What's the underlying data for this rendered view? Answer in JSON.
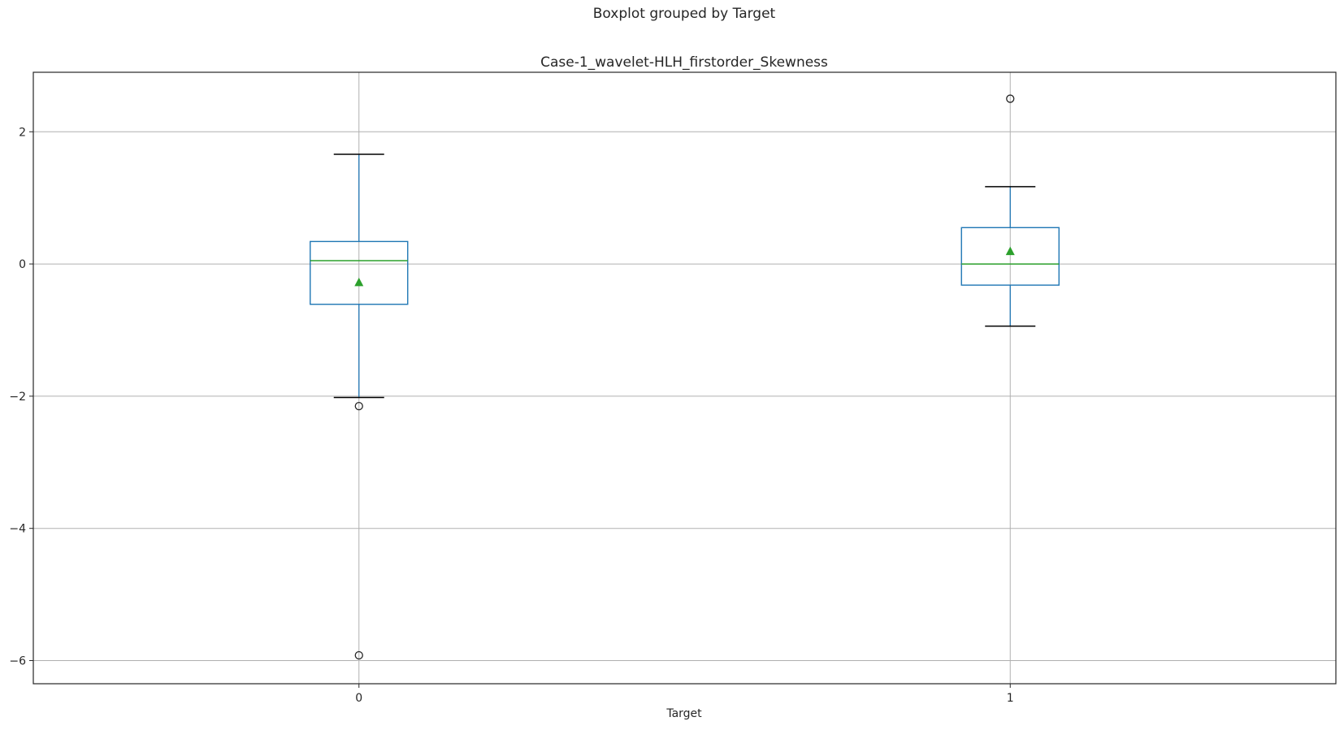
{
  "figure": {
    "suptitle": "Boxplot grouped by Target"
  },
  "chart_data": {
    "type": "box",
    "title": "Case-1_wavelet-HLH_firstorder_Skewness",
    "xlabel": "Target",
    "ylabel": "",
    "categories": [
      "0",
      "1"
    ],
    "ylim": [
      -6.35,
      2.9
    ],
    "yticks": [
      -6,
      -4,
      -2,
      0,
      2
    ],
    "ytick_labels": [
      "−6",
      "−4",
      "−2",
      "0",
      "2"
    ],
    "grid": true,
    "colors": {
      "box": "#1f77b4",
      "median": "#2ca02c",
      "mean": "#2ca02c",
      "whisker_cap": "#000000",
      "grid": "#b0b0b0"
    },
    "boxes": [
      {
        "category": "0",
        "whisker_low": -2.02,
        "q1": -0.61,
        "median": 0.05,
        "q3": 0.34,
        "whisker_high": 1.66,
        "mean": -0.28,
        "outliers": [
          -2.15,
          -5.92
        ]
      },
      {
        "category": "1",
        "whisker_low": -0.94,
        "q1": -0.32,
        "median": 0.0,
        "q3": 0.55,
        "whisker_high": 1.17,
        "mean": 0.19,
        "outliers": [
          2.5
        ]
      }
    ]
  }
}
